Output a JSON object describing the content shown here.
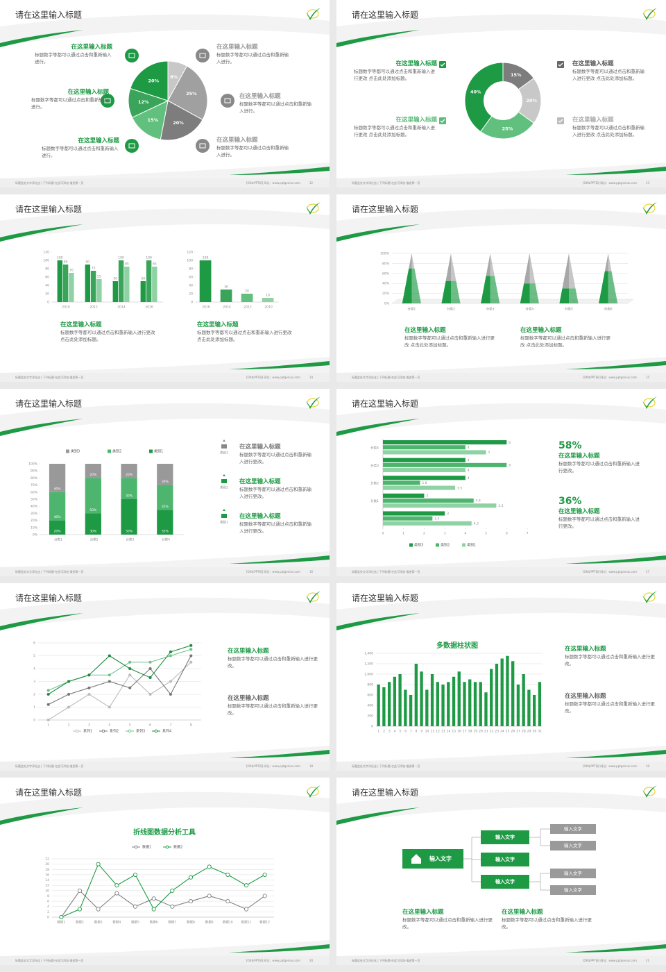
{
  "footer": {
    "left": "标题此处文字添在这 | 下列标题·在此可添加·描述第一页",
    "right": "[OK年PPT网]  网址：www.pptgenius.com"
  },
  "slides": [
    {
      "title": "请在这里输入标题",
      "page": "12",
      "blocks": [
        {
          "heading": "在这里输入标题",
          "body": "标题数字等都可以通过点击和重新输入进行。"
        },
        {
          "heading": "在这里输入标题",
          "body": "标题数字等都可以通过点击和重新输入进行。"
        },
        {
          "heading": "在这里输入标题",
          "body": "标题数字等都可以通过点击和重新输入进行。"
        },
        {
          "heading": "在这里输入标题",
          "body": "标题数字等都可以通过点击和重新输入进行。"
        },
        {
          "heading": "在这里输入标题",
          "body": "标题数字等都可以通过点击和重新输入进行。"
        },
        {
          "heading": "在这里输入标题",
          "body": "标题数字等都可以通过点击和重新输入进行。"
        }
      ]
    },
    {
      "title": "请在这里输入标题",
      "page": "13",
      "blocks": [
        {
          "heading": "在这里输入标题",
          "body": "标题数字等都可以通过点击和重新输入进行更改 点击此处添加标题。"
        },
        {
          "heading": "在这里输入标题",
          "body": "标题数字等都可以通过点击和重新输入进行更改 点击此处添加标题。"
        },
        {
          "heading": "在这里输入标题",
          "body": "标题数字等都可以通过点击和重新输入进行更改 点击此处添加标题。"
        },
        {
          "heading": "在这里输入标题",
          "body": "标题数字等都可以通过点击和重新输入进行更改 点击此处添加标题。"
        }
      ]
    },
    {
      "title": "请在这里输入标题",
      "page": "14",
      "blocks": [
        {
          "heading": "在这里输入标题",
          "body": "标题数字等都可以通过点击和重新输入进行更改 点击此处添加标题。"
        },
        {
          "heading": "在这里输入标题",
          "body": "标题数字等都可以通过点击和重新输入进行更改 点击此处添加标题。"
        }
      ]
    },
    {
      "title": "请在这里输入标题",
      "page": "15",
      "blocks": [
        {
          "heading": "在这里输入标题",
          "body": "标题数字等都可以通过点击和重新输入进行更改 点击此处添加标题。"
        },
        {
          "heading": "在这里输入标题",
          "body": "标题数字等都可以通过点击和重新输入进行更改 点击此处添加标题。"
        }
      ]
    },
    {
      "title": "请在这里输入标题",
      "page": "16",
      "blocks": [
        {
          "heading": "在这里输入标题",
          "icon_label": "类别3",
          "body": "标题数字等都可以通过点击和重新输入进行更改。"
        },
        {
          "heading": "在这里输入标题",
          "icon_label": "类别2",
          "body": "标题数字等都可以通过点击和重新输入进行更改。"
        },
        {
          "heading": "在这里输入标题",
          "icon_label": "类别1",
          "body": "标题数字等都可以通过点击和重新输入进行更改。"
        }
      ]
    },
    {
      "title": "请在这里输入标题",
      "page": "17",
      "blocks": [
        {
          "figure": "58%",
          "heading": "在这里输入标题",
          "body": "标题数字等都可以通过点击和重新输入进行更改。"
        },
        {
          "figure": "36%",
          "heading": "在这里输入标题",
          "body": "标题数字等都可以通过点击和重新输入进行更改。"
        }
      ]
    },
    {
      "title": "请在这里输入标题",
      "page": "18",
      "blocks": [
        {
          "heading": "在这里输入标题",
          "body": "标题数字等都可以通过点击和重新输入进行更改。"
        },
        {
          "heading": "在这里输入标题",
          "body": "标题数字等都可以通过点击和重新输入进行更改。"
        }
      ]
    },
    {
      "title": "请在这里输入标题",
      "page": "19",
      "blocks": [
        {
          "heading": "在这里输入标题",
          "body": "标题数字等都可以通过点击和重新输入进行更改。"
        },
        {
          "heading": "在这里输入标题",
          "body": "标题数字等都可以通过点击和重新输入进行更改。"
        }
      ]
    },
    {
      "title": "请在这里输入标题",
      "page": "20",
      "blocks": []
    },
    {
      "title": "请在这里输入标题",
      "page": "21",
      "blocks": [
        {
          "heading": "在这里输入标题",
          "body": "标题数字等都可以通过点击和重新输入进行更改。"
        },
        {
          "heading": "在这里输入标题",
          "body": "标题数字等都可以通过点击和重新输入进行更改。"
        }
      ],
      "diagram": {
        "root": "输入文字",
        "children": [
          {
            "label": "输入文字",
            "children": [
              "输入文字",
              "输入文字"
            ]
          },
          {
            "label": "输入文字",
            "children": []
          },
          {
            "label": "输入文字",
            "children": [
              "输入文字",
              "输入文字"
            ]
          }
        ]
      }
    }
  ],
  "chart_data": [
    {
      "type": "pie",
      "values": [
        8,
        25,
        20,
        15,
        12,
        20
      ],
      "value_labels": [
        "8%",
        "25%",
        "20%",
        "15%",
        "12%",
        "20%"
      ],
      "colors": [
        "#c8c8c8",
        "#a0a0a0",
        "#7d7d7d",
        "#62c07f",
        "#3aa55a",
        "#1e9a45"
      ]
    },
    {
      "type": "pie",
      "donut": true,
      "values": [
        15,
        20,
        25,
        40
      ],
      "value_labels": [
        "15%",
        "20%",
        "25%",
        "40%"
      ],
      "colors": [
        "#7d7d7d",
        "#c8c8c8",
        "#62c07f",
        "#1e9a45"
      ]
    },
    {
      "type": "bar",
      "categories": [
        "2010",
        "2012",
        "2014",
        "2016"
      ],
      "data_labels": true,
      "series": [
        {
          "color": "#1e9a45",
          "values": [
            100,
            90,
            50,
            50
          ]
        },
        {
          "color": "#3aa55a",
          "values": [
            90,
            75,
            100,
            100
          ]
        },
        {
          "color": "#8fd3a4",
          "values": [
            70,
            55,
            85,
            85
          ]
        }
      ],
      "ylim": [
        0,
        120
      ],
      "yticks": [
        0,
        20,
        40,
        60,
        80,
        100,
        120
      ]
    },
    {
      "type": "bar",
      "categories": [
        "2016",
        "2014",
        "2012",
        "2010"
      ],
      "data_labels": true,
      "values": [
        100,
        30,
        20,
        10
      ],
      "colors": [
        "#1e9a45",
        "#3aa55a",
        "#62c07f",
        "#8fd3a4"
      ],
      "ylim": [
        0,
        120
      ],
      "yticks": [
        0,
        20,
        40,
        60,
        80,
        100,
        120
      ]
    },
    {
      "type": "pyramid",
      "categories": [
        "分类1",
        "分类2",
        "分类3",
        "分类4",
        "分类5",
        "分类6"
      ],
      "grid": true,
      "series": [
        {
          "color": "#1e9a45",
          "values": [
            70,
            45,
            55,
            40,
            30,
            65
          ]
        },
        {
          "color": "#a8a8a8",
          "values": [
            30,
            55,
            45,
            60,
            70,
            35
          ]
        }
      ],
      "ylim": [
        0,
        100
      ],
      "yticks": [
        {
          "value": 0,
          "label": "0%"
        },
        {
          "value": 20,
          "label": "20%"
        },
        {
          "value": 40,
          "label": "40%"
        },
        {
          "value": 60,
          "label": "60%"
        },
        {
          "value": 80,
          "label": "80%"
        },
        {
          "value": 100,
          "label": "100%"
        }
      ]
    },
    {
      "type": "bar",
      "stacked": true,
      "data_labels": true,
      "categories": [
        "分类1",
        "分类2",
        "分类3",
        "分类4"
      ],
      "series": [
        {
          "name": "类别3",
          "color": "#999999",
          "values": [
            40,
            20,
            20,
            30
          ],
          "value_labels": [
            "40%",
            "20%",
            "20%",
            "30%"
          ]
        },
        {
          "name": "类别2",
          "color": "#4db56e",
          "values": [
            40,
            50,
            30,
            35
          ],
          "value_labels": [
            "40%",
            "50%",
            "30%",
            "35%"
          ]
        },
        {
          "name": "类别1",
          "color": "#1e9a45",
          "values": [
            20,
            30,
            50,
            35
          ],
          "value_labels": [
            "20%",
            "30%",
            "50%",
            "35%"
          ]
        }
      ],
      "ylim": [
        0,
        100
      ],
      "yticks": [
        {
          "value": 0,
          "label": "0%"
        },
        {
          "value": 10,
          "label": "10%"
        },
        {
          "value": 20,
          "label": "20%"
        },
        {
          "value": 30,
          "label": "30%"
        },
        {
          "value": 40,
          "label": "40%"
        },
        {
          "value": 50,
          "label": "50%"
        },
        {
          "value": 60,
          "label": "60%"
        },
        {
          "value": 70,
          "label": "70%"
        },
        {
          "value": 80,
          "label": "80%"
        },
        {
          "value": 90,
          "label": "90%"
        },
        {
          "value": 100,
          "label": "100%"
        }
      ]
    },
    {
      "type": "bar",
      "orientation": "horizontal",
      "data_labels": true,
      "categories": [
        null,
        "分类1",
        "分类2",
        "分类3",
        "分类4"
      ],
      "series": [
        {
          "name": "类别3",
          "color": "#1e9a45",
          "values": [
            3,
            2,
            4,
            4,
            6
          ]
        },
        {
          "name": "类别2",
          "color": "#4db56e",
          "values": [
            2.4,
            4.4,
            1.8,
            6,
            4
          ]
        },
        {
          "name": "类别1",
          "color": "#8fd3a4",
          "values": [
            4.3,
            5.5,
            3.5,
            4,
            5
          ]
        }
      ],
      "xlim": [
        0,
        7
      ],
      "xticks": [
        0,
        1,
        2,
        3,
        4,
        5,
        6,
        7
      ]
    },
    {
      "type": "line",
      "grid": true,
      "markers": "filled",
      "categories": [
        "1",
        "2",
        "3",
        "4",
        "5",
        "6",
        "7",
        "8"
      ],
      "series": [
        {
          "name": "系列1",
          "color": "#bbbbbb",
          "values": [
            0,
            1,
            2,
            1,
            3.5,
            2,
            3,
            4.5
          ]
        },
        {
          "name": "系列2",
          "color": "#777777",
          "values": [
            1.2,
            2,
            2.5,
            3,
            2.5,
            4,
            2,
            5
          ]
        },
        {
          "name": "系列3",
          "color": "#6cc28a",
          "values": [
            2.3,
            3,
            3.5,
            3.5,
            4.5,
            4.5,
            5,
            5.5
          ]
        },
        {
          "name": "系列4",
          "color": "#1e8a3e",
          "values": [
            2,
            3,
            3.5,
            5,
            4,
            3.3,
            5.3,
            5.8
          ]
        }
      ],
      "ylim": [
        0,
        6
      ],
      "yticks": [
        0,
        1,
        2,
        3,
        4,
        5,
        6
      ]
    },
    {
      "type": "bar",
      "title": "多数据柱状图",
      "grid": true,
      "color": "#1e9a45",
      "categories": [
        "1",
        "2",
        "3",
        "4",
        "5",
        "6",
        "7",
        "8",
        "9",
        "10",
        "11",
        "12",
        "13",
        "14",
        "15",
        "16",
        "17",
        "18",
        "19",
        "20",
        "21",
        "22",
        "23",
        "24",
        "25",
        "26",
        "27",
        "28",
        "29",
        "30",
        "31"
      ],
      "values": [
        800,
        750,
        850,
        950,
        1000,
        700,
        600,
        1200,
        1050,
        700,
        1000,
        850,
        800,
        850,
        950,
        1050,
        850,
        900,
        850,
        850,
        650,
        1100,
        1200,
        1300,
        1350,
        1250,
        800,
        1000,
        700,
        600,
        850
      ],
      "ylim": [
        0,
        1400
      ],
      "yticks": [
        0,
        200,
        400,
        600,
        800,
        {
          "value": 1000,
          "label": "1,000"
        },
        {
          "value": 1200,
          "label": "1,200"
        },
        {
          "value": 1400,
          "label": "1,400"
        }
      ]
    },
    {
      "type": "line",
      "title": "折线图数据分析工具",
      "grid": true,
      "markers": "hollow",
      "categories": [
        "数据1",
        "数据2",
        "数据3",
        "数据4",
        "数据5",
        "数据6",
        "数据7",
        "数据8",
        "数据9",
        "数据10",
        "数据11",
        "数据12"
      ],
      "series": [
        {
          "name": "数据1",
          "color": "#808080",
          "values": [
            0,
            10,
            3,
            9,
            4,
            7,
            4,
            6,
            8,
            6,
            3,
            8
          ]
        },
        {
          "name": "数据2",
          "color": "#1e9a45",
          "values": [
            0,
            3,
            20,
            12,
            16,
            3,
            10,
            15,
            19,
            16,
            12,
            16
          ]
        }
      ],
      "ylim": [
        0,
        22
      ],
      "yticks": [
        0,
        2,
        4,
        6,
        8,
        10,
        12,
        14,
        16,
        18,
        20,
        22
      ]
    }
  ]
}
